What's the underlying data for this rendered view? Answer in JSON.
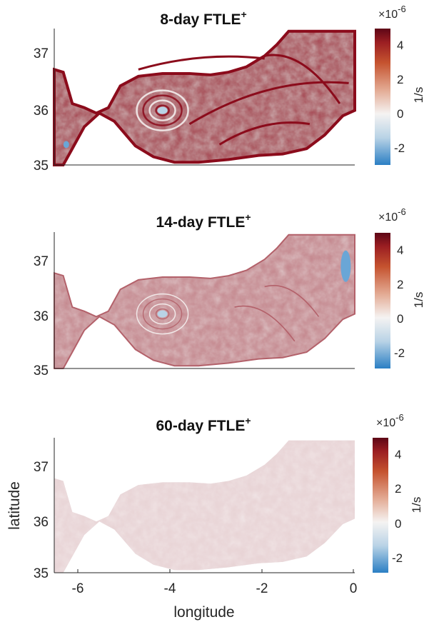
{
  "chart_data": [
    {
      "type": "heatmap",
      "title": "8-day FTLE",
      "title_superscript": "+",
      "ylim": [
        35,
        37.5
      ],
      "xlim": [
        -6.5,
        0
      ],
      "yticks": [
        "35",
        "36",
        "37"
      ],
      "xticks": [],
      "xlabel": "",
      "ylabel": "",
      "colorbar": {
        "min": -3,
        "max": 5,
        "ticks": [
          "4",
          "2",
          "0",
          "-2"
        ],
        "label": "1/s",
        "multiplier": "×10",
        "multiplier_exp": "-6"
      },
      "intensity": 0.95,
      "colors": {
        "positive": "#8b0a1a",
        "neutral": "#f7f4f3",
        "negative": "#1f78c4"
      }
    },
    {
      "type": "heatmap",
      "title": "14-day FTLE",
      "title_superscript": "+",
      "ylim": [
        35,
        37.5
      ],
      "xlim": [
        -6.5,
        0
      ],
      "yticks": [
        "35",
        "36",
        "37"
      ],
      "xticks": [],
      "xlabel": "",
      "ylabel": "",
      "colorbar": {
        "min": -3,
        "max": 5,
        "ticks": [
          "4",
          "2",
          "0",
          "-2"
        ],
        "label": "1/s",
        "multiplier": "×10",
        "multiplier_exp": "-6"
      },
      "intensity": 0.6,
      "colors": {
        "positive": "#8b0a1a",
        "neutral": "#f7f4f3",
        "negative": "#1f78c4"
      }
    },
    {
      "type": "heatmap",
      "title": "60-day FTLE",
      "title_superscript": "+",
      "ylim": [
        35,
        37.5
      ],
      "xlim": [
        -6.5,
        0
      ],
      "yticks": [
        "35",
        "36",
        "37"
      ],
      "xticks": [
        "-6",
        "-4",
        "-2",
        "0"
      ],
      "xlabel": "longitude",
      "ylabel": "latitude",
      "colorbar": {
        "min": -3,
        "max": 5,
        "ticks": [
          "4",
          "2",
          "0",
          "-2"
        ],
        "label": "1/s",
        "multiplier": "×10",
        "multiplier_exp": "-6"
      },
      "intensity": 0.18,
      "colors": {
        "positive": "#8b0a1a",
        "neutral": "#f7f4f3",
        "negative": "#1f78c4"
      }
    }
  ]
}
